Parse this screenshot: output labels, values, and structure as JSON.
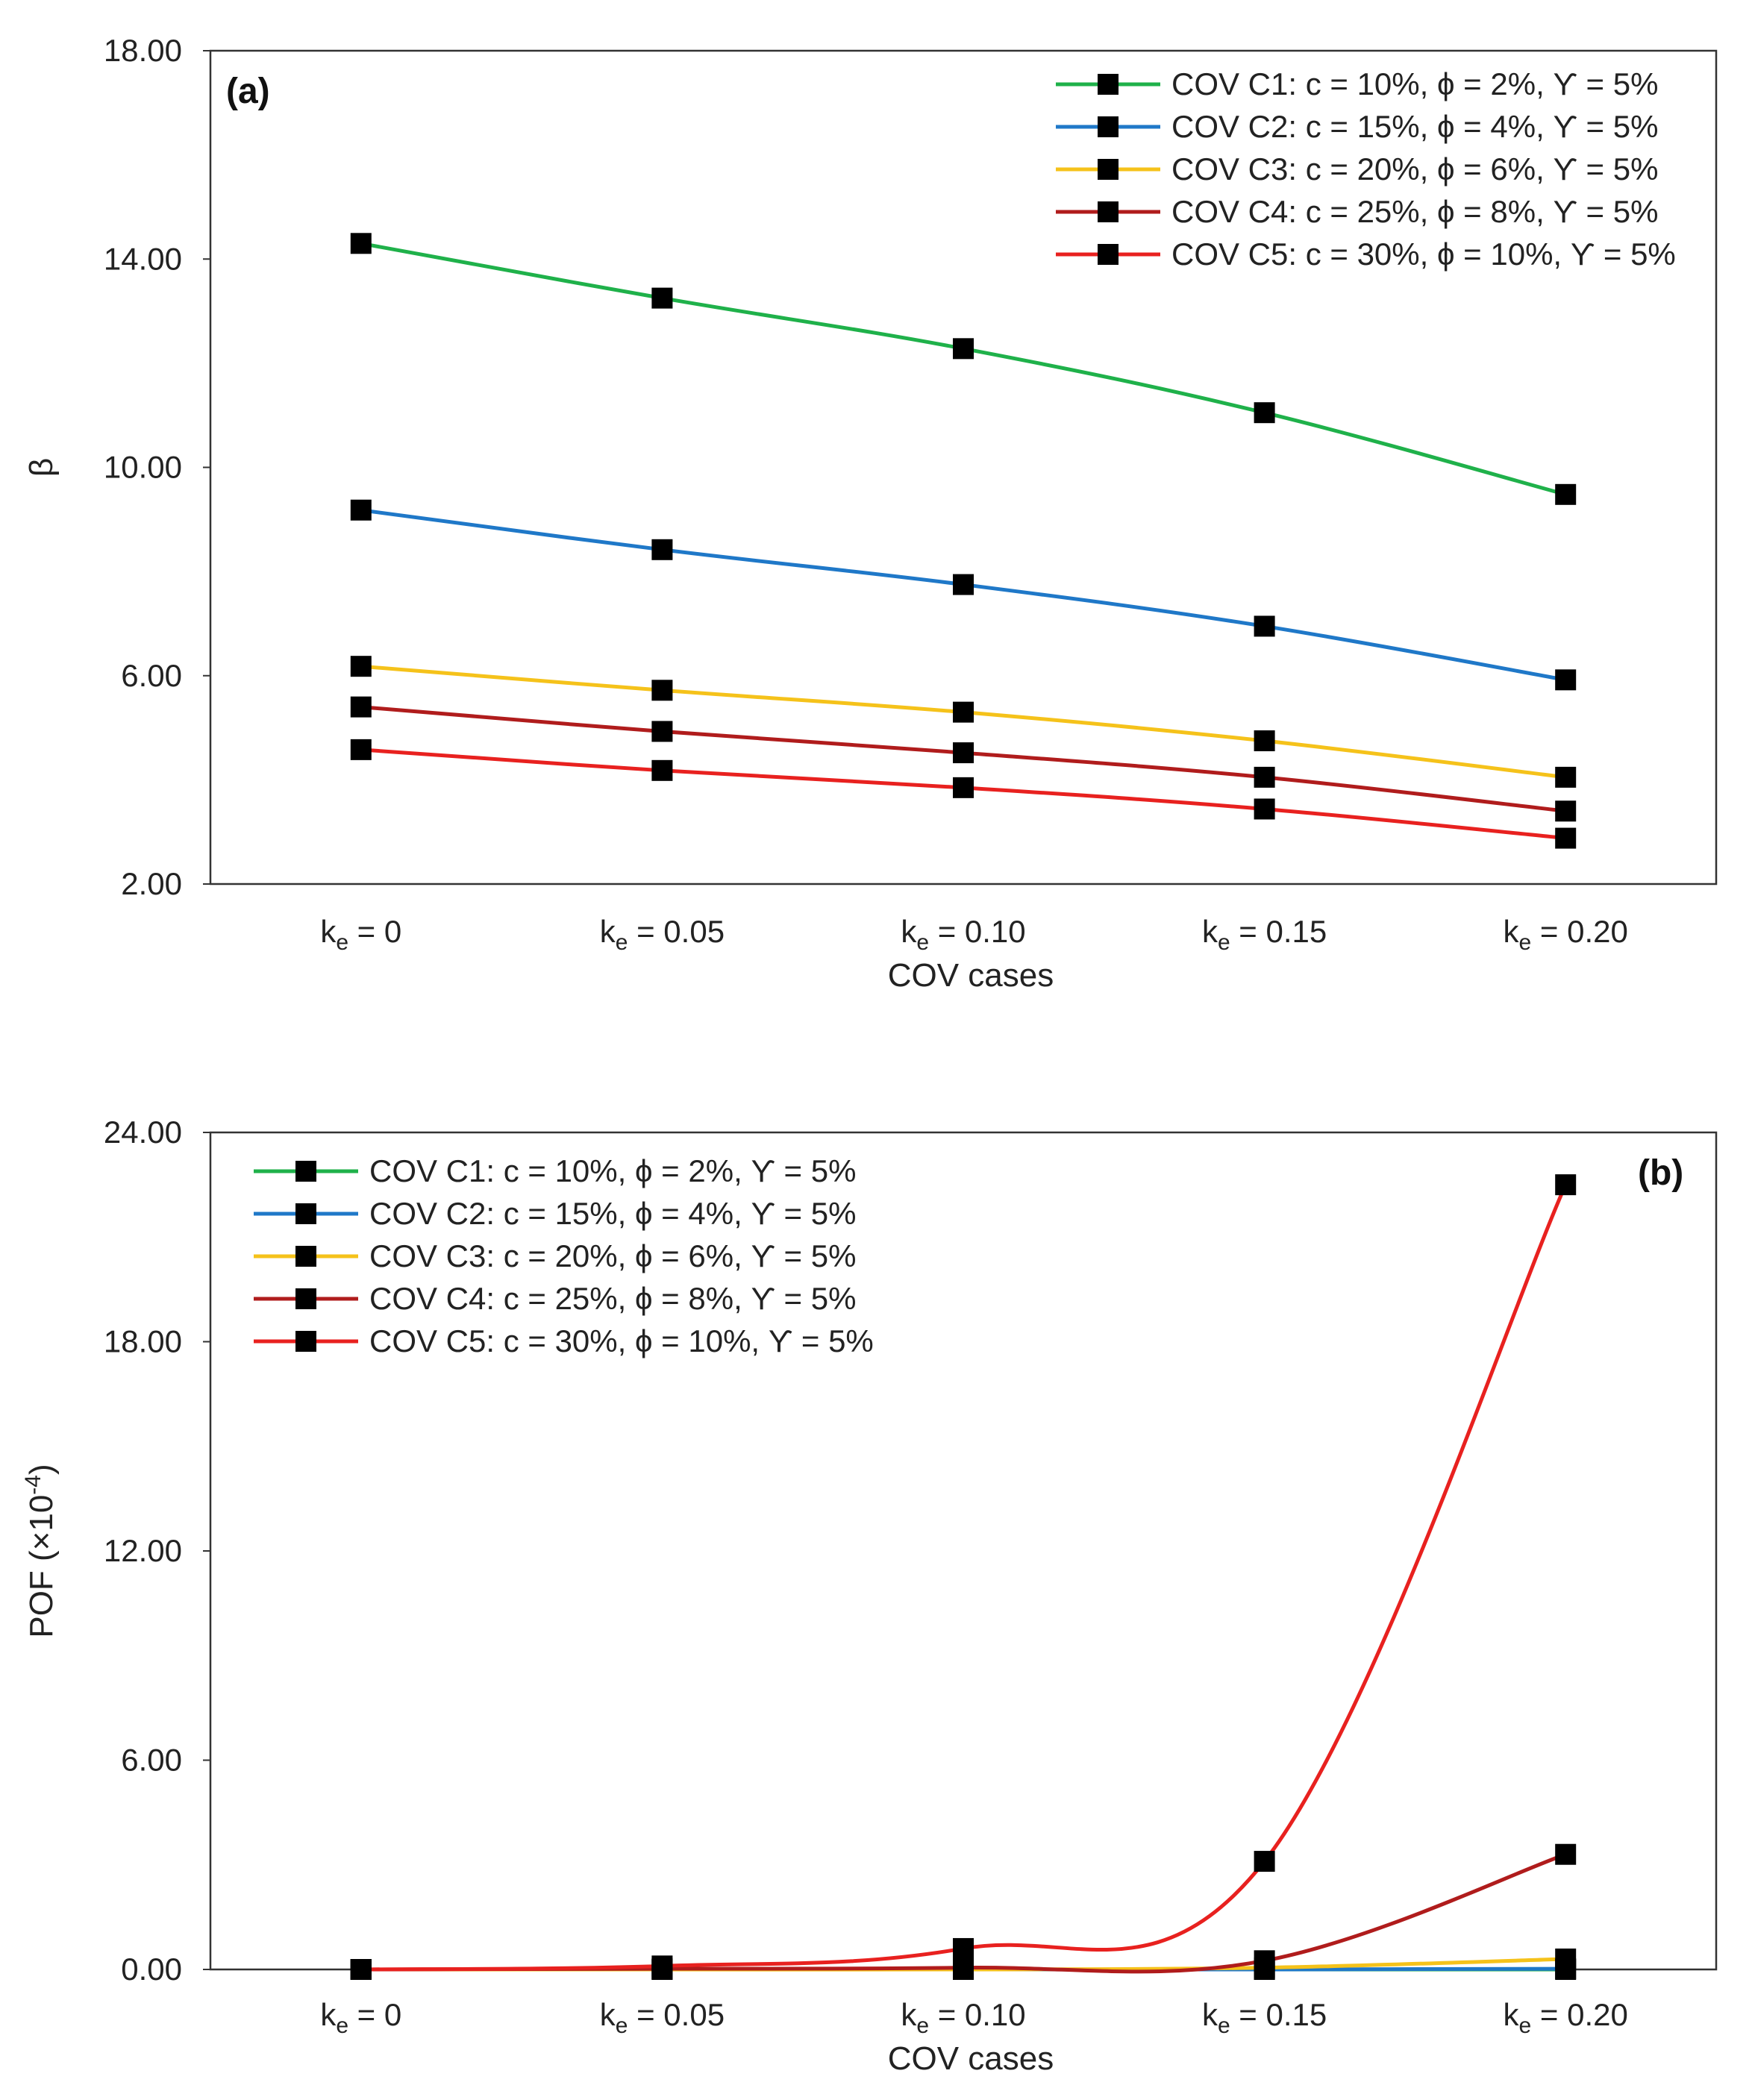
{
  "chart_data": [
    {
      "type": "line",
      "panel": "(a)",
      "title": "",
      "xlabel": "COV cases",
      "ylabel": "β",
      "ylim": [
        2,
        18
      ],
      "yticks": [
        "2.00",
        "6.00",
        "10.00",
        "14.00",
        "18.00"
      ],
      "categories": [
        {
          "base": "k",
          "sub": "e",
          "rest": " = 0"
        },
        {
          "base": "k",
          "sub": "e",
          "rest": " = 0.05"
        },
        {
          "base": "k",
          "sub": "e",
          "rest": " = 0.10"
        },
        {
          "base": "k",
          "sub": "e",
          "rest": " = 0.15"
        },
        {
          "base": "k",
          "sub": "e",
          "rest": " = 0.20"
        }
      ],
      "legend_position": "top-right",
      "series": [
        {
          "name": "COV C1: c = 10%, ϕ = 2%, ϒ = 5%",
          "color": "#1fb14a",
          "values": [
            14.3,
            13.25,
            12.28,
            11.05,
            9.48
          ]
        },
        {
          "name": "COV C2: c = 15%, ϕ = 4%, ϒ = 5%",
          "color": "#1f78c8",
          "values": [
            9.18,
            8.42,
            7.75,
            6.95,
            5.92
          ]
        },
        {
          "name": "COV C3: c = 20%, ϕ = 6%, ϒ = 5%",
          "color": "#f5c21a",
          "values": [
            6.18,
            5.72,
            5.3,
            4.75,
            4.05
          ]
        },
        {
          "name": "COV C4: c = 25%, ϕ = 8%, ϒ = 5%",
          "color": "#b01c1c",
          "values": [
            5.4,
            4.93,
            4.52,
            4.05,
            3.4
          ]
        },
        {
          "name": "COV C5: c = 30%, ϕ = 10%, ϒ = 5%",
          "color": "#e8211f",
          "values": [
            4.58,
            4.18,
            3.85,
            3.44,
            2.88
          ]
        }
      ]
    },
    {
      "type": "line",
      "panel": "(b)",
      "title": "",
      "xlabel": "COV cases",
      "ylabel": "POF (×10",
      "ylabel_sup": "-4",
      "ylabel_end": ")",
      "ylim": [
        0,
        24
      ],
      "yticks": [
        "0.00",
        "6.00",
        "12.00",
        "18.00",
        "24.00"
      ],
      "categories": [
        {
          "base": "k",
          "sub": "e",
          "rest": " = 0"
        },
        {
          "base": "k",
          "sub": "e",
          "rest": " = 0.05"
        },
        {
          "base": "k",
          "sub": "e",
          "rest": " = 0.10"
        },
        {
          "base": "k",
          "sub": "e",
          "rest": " = 0.15"
        },
        {
          "base": "k",
          "sub": "e",
          "rest": " = 0.20"
        }
      ],
      "legend_position": "top-left",
      "series": [
        {
          "name": "COV C1: c = 10%, ϕ = 2%, ϒ = 5%",
          "color": "#1fb14a",
          "values": [
            0,
            0,
            0,
            0,
            0
          ]
        },
        {
          "name": "COV C2: c = 15%, ϕ = 4%, ϒ = 5%",
          "color": "#1f78c8",
          "values": [
            0,
            0,
            0,
            0,
            0.02
          ]
        },
        {
          "name": "COV C3: c = 20%, ϕ = 6%, ϒ = 5%",
          "color": "#f5c21a",
          "values": [
            0,
            0,
            0,
            0.05,
            0.3
          ]
        },
        {
          "name": "COV C4: c = 25%, ϕ = 8%, ϒ = 5%",
          "color": "#b01c1c",
          "values": [
            0,
            0.02,
            0.05,
            0.25,
            3.3
          ]
        },
        {
          "name": "COV C5: c = 30%, ϕ = 10%, ϒ = 5%",
          "color": "#e8211f",
          "values": [
            0,
            0.1,
            0.6,
            3.1,
            22.5
          ]
        }
      ]
    }
  ]
}
